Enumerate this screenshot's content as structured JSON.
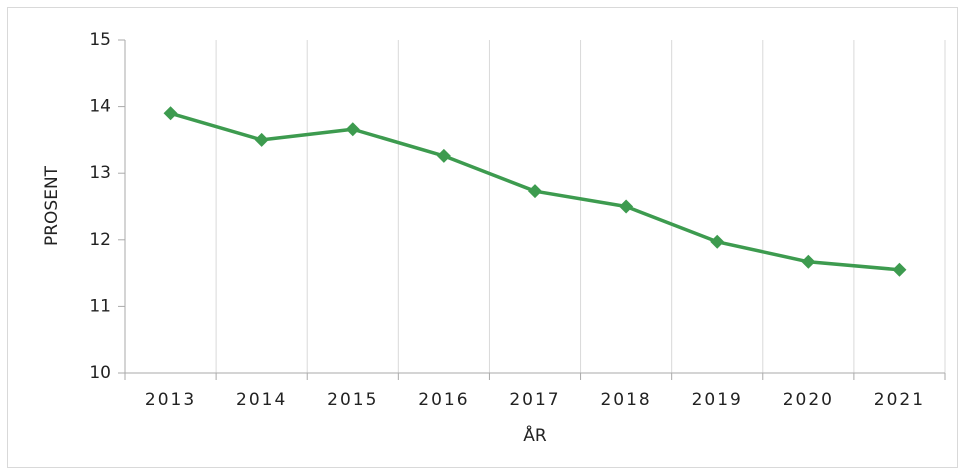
{
  "chart_data": {
    "type": "line",
    "x_label": "ÅR",
    "y_label": "PROSENT",
    "categories": [
      "2013",
      "2014",
      "2015",
      "2016",
      "2017",
      "2018",
      "2019",
      "2020",
      "2021"
    ],
    "series": [
      {
        "name": "PROSENT",
        "color": "#3d9b4f",
        "values": [
          13.9,
          13.5,
          13.66,
          13.26,
          12.73,
          12.5,
          11.97,
          11.67,
          11.55
        ]
      }
    ],
    "ylim": [
      10,
      15
    ],
    "yticks": [
      10,
      11,
      12,
      13,
      14,
      15
    ],
    "grid": true
  }
}
